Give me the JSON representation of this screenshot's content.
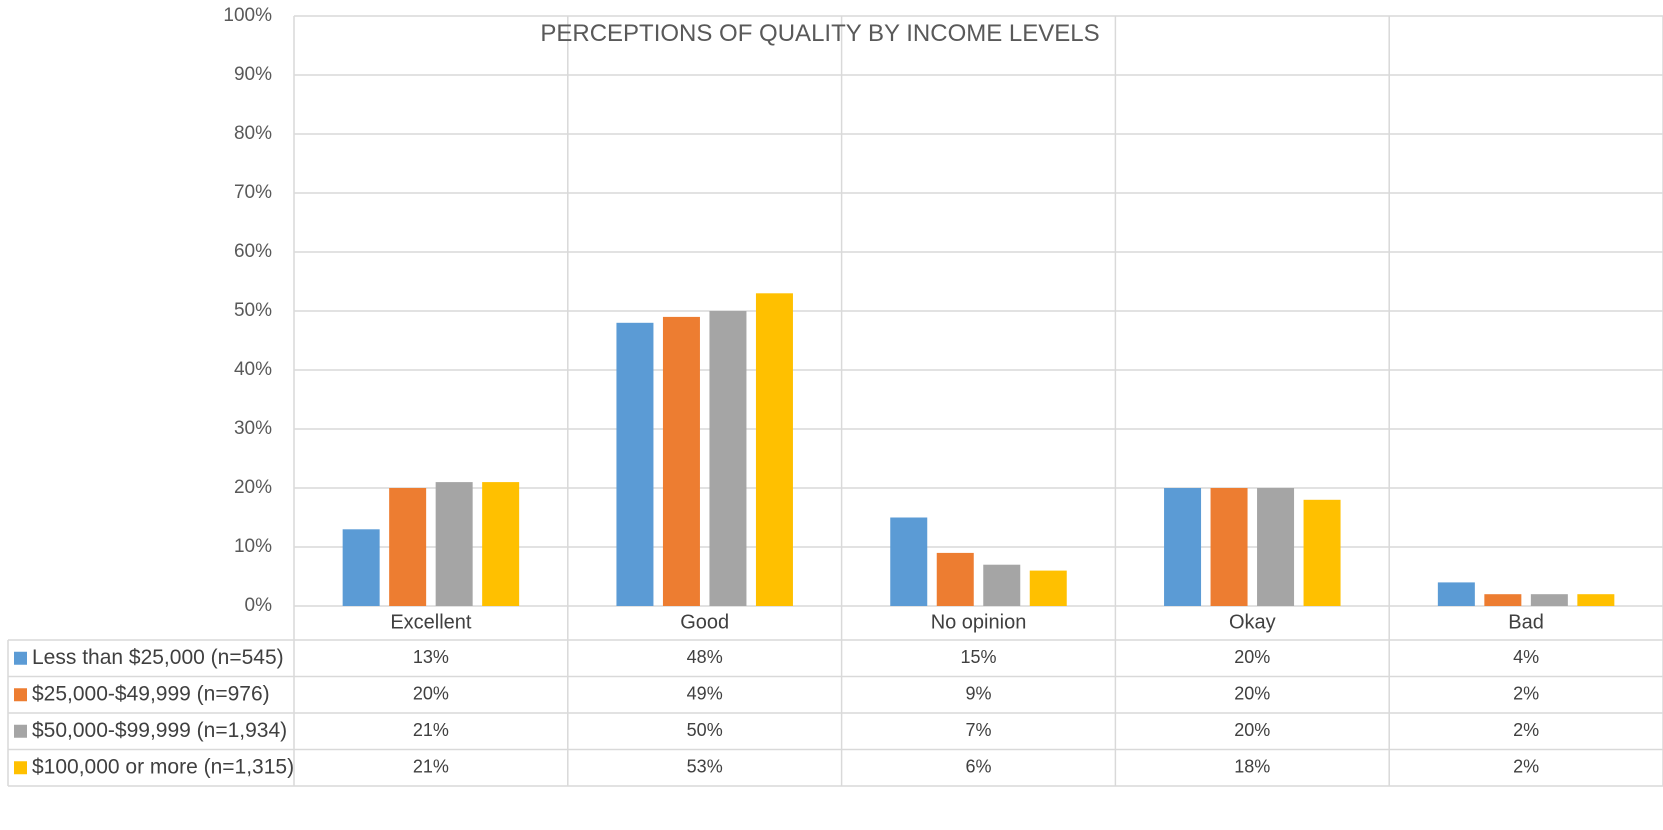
{
  "chart_data": {
    "type": "bar",
    "title": "PERCEPTIONS OF QUALITY BY INCOME LEVELS",
    "xlabel": "",
    "ylabel": "",
    "ylim": [
      0,
      100
    ],
    "y_ticks": [
      "0%",
      "10%",
      "20%",
      "30%",
      "40%",
      "50%",
      "60%",
      "70%",
      "80%",
      "90%",
      "100%"
    ],
    "categories": [
      "Excellent",
      "Good",
      "No opinion",
      "Okay",
      "Bad"
    ],
    "grid": true,
    "legend_placement": "data-table",
    "series": [
      {
        "name": "Less than $25,000 (n=545)",
        "color": "#5b9bd5",
        "values": [
          13,
          48,
          15,
          20,
          4
        ],
        "labels": [
          "13%",
          "48%",
          "15%",
          "20%",
          "4%"
        ]
      },
      {
        "name": "$25,000-$49,999 (n=976)",
        "color": "#ed7d31",
        "values": [
          20,
          49,
          9,
          20,
          2
        ],
        "labels": [
          "20%",
          "49%",
          "9%",
          "20%",
          "2%"
        ]
      },
      {
        "name": "$50,000-$99,999 (n=1,934)",
        "color": "#a5a5a5",
        "values": [
          21,
          50,
          7,
          20,
          2
        ],
        "labels": [
          "21%",
          "50%",
          "7%",
          "20%",
          "2%"
        ]
      },
      {
        "name": "$100,000 or more (n=1,315)",
        "color": "#ffc000",
        "values": [
          21,
          53,
          6,
          18,
          2
        ],
        "labels": [
          "21%",
          "53%",
          "6%",
          "18%",
          "2%"
        ]
      }
    ]
  }
}
